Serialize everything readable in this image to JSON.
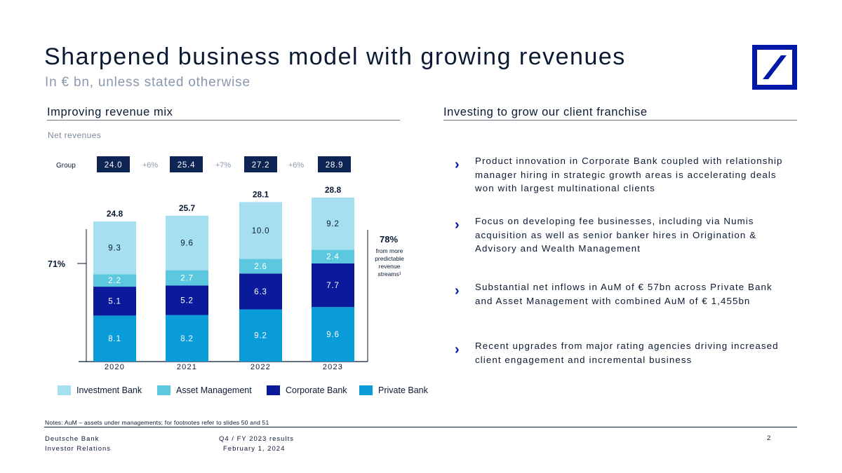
{
  "header": {
    "title": "Sharpened business model with growing revenues",
    "subtitle": "In € bn, unless stated otherwise"
  },
  "left_section": {
    "heading": "Improving revenue mix",
    "chart_caption": "Net revenues"
  },
  "right_section": {
    "heading": "Investing to grow our client franchise",
    "bullets": [
      "Product innovation in Corporate Bank coupled with relationship manager hiring in strategic growth areas is accelerating deals won with largest multinational clients",
      "Focus on developing fee businesses, including via Numis acquisition as well as senior banker hires in Origination & Advisory and Wealth Management",
      "Substantial net inflows in AuM of € 57bn across Private Bank and Asset Management with combined AuM of € 1,455bn",
      "Recent upgrades from major rating agencies driving increased client engagement and incremental business"
    ]
  },
  "chart_data": {
    "type": "bar",
    "stacked": true,
    "title": "Net revenues",
    "categories": [
      "2020",
      "2021",
      "2022",
      "2023"
    ],
    "series": [
      {
        "name": "Private Bank",
        "values": [
          8.1,
          8.2,
          9.2,
          9.6
        ],
        "color": "#0a9bd9"
      },
      {
        "name": "Corporate Bank",
        "values": [
          5.1,
          5.2,
          6.3,
          7.7
        ],
        "color": "#0a1a9a"
      },
      {
        "name": "Asset Management",
        "values": [
          2.2,
          2.7,
          2.6,
          2.4
        ],
        "color": "#5bc8e0"
      },
      {
        "name": "Investment Bank",
        "values": [
          9.3,
          9.6,
          10.0,
          9.2
        ],
        "color": "#a6e0f0"
      }
    ],
    "legend_order": [
      "Investment Bank",
      "Asset Management",
      "Corporate Bank",
      "Private Bank"
    ],
    "totals": [
      "24.8",
      "25.7",
      "28.1",
      "28.8"
    ],
    "group": {
      "label": "Group",
      "values": [
        "24.0",
        "25.4",
        "27.2",
        "28.9"
      ],
      "growth": [
        "+6%",
        "+7%",
        "+6%"
      ]
    },
    "annotations": {
      "left_pct": "71%",
      "right_pct": "78%",
      "right_note": [
        "from more",
        "predictable",
        "revenue",
        "streams¹"
      ]
    },
    "ylim": [
      0,
      30
    ],
    "legend_position": "bottom"
  },
  "notes": "Notes: AuM – assets under managements; for footnotes refer to slides 50 and 51",
  "footer": {
    "company": "Deutsche Bank",
    "department": "Investor Relations",
    "report": "Q4 / FY 2023 results",
    "date": "February 1, 2024",
    "page": "2"
  },
  "colors": {
    "brand": "#0018a8",
    "navy": "#0a1a33",
    "group_box": "#0e2454"
  }
}
